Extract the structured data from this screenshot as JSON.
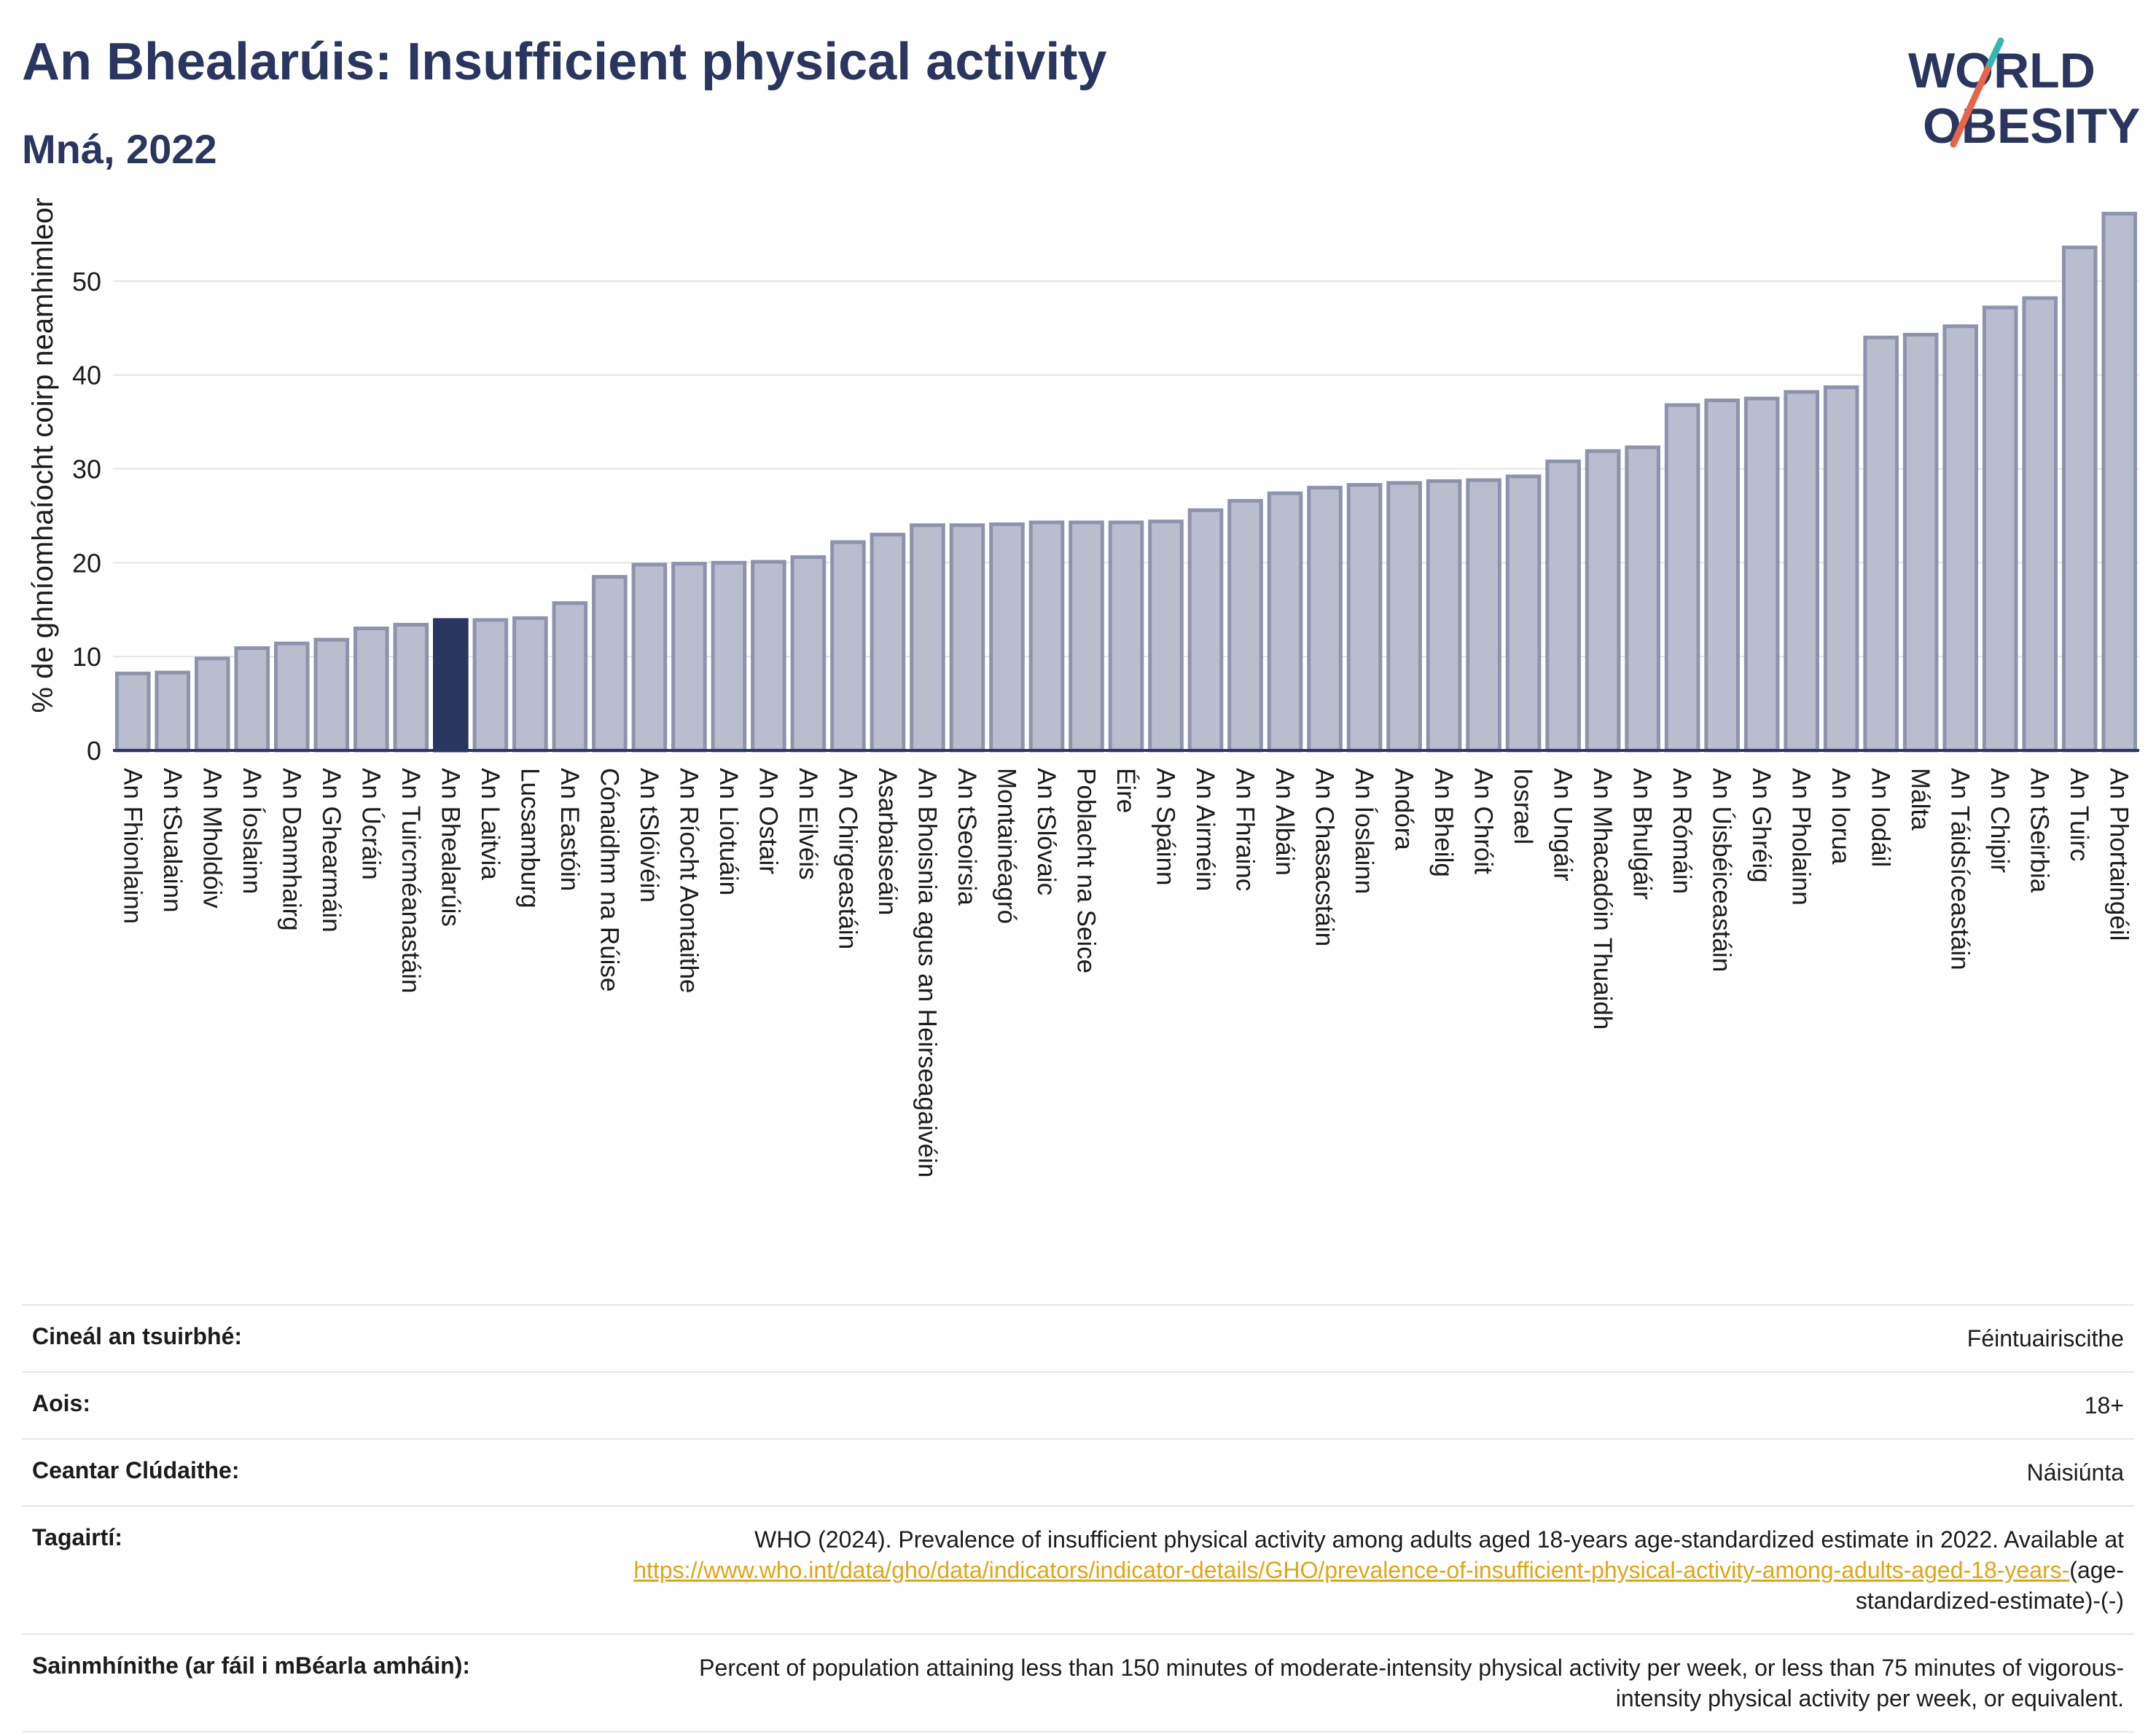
{
  "header": {
    "title": "An Bhealarúis: Insufficient physical activity",
    "subtitle": "Mná, 2022"
  },
  "logo": {
    "line1": "WORLD",
    "line2": "OBESITY",
    "accent": "#e8654a",
    "accent2": "#35b6b4",
    "color": "#2a3560"
  },
  "colors": {
    "bar": "#b9bdcd",
    "bar_stroke": "#8d93ac",
    "highlight": "#2a3560",
    "axis": "#2a3560",
    "grid": "#e4e4e4"
  },
  "chart_data": {
    "type": "bar",
    "ylabel": "% de ghníomhaíocht coirp neamhimleor",
    "ylim": [
      0,
      59
    ],
    "yticks": [
      0,
      10,
      20,
      30,
      40,
      50
    ],
    "grid": true,
    "highlight": "An Bhealarúis",
    "categories": [
      "An Fhionlainn",
      "An tSualainn",
      "An Mholdóiv",
      "An Íoslainn",
      "An Danmhairg",
      "An Ghearmáin",
      "An Úcráin",
      "An Tuircméanastáin",
      "An Bhealarúis",
      "An Laitvia",
      "Lucsamburg",
      "An Eastóin",
      "Cónaidhm na Rúise",
      "An tSlóivéin",
      "An Ríocht Aontaithe",
      "An Liotuáin",
      "An Ostair",
      "An Eilvéis",
      "An Chirgeastáin",
      "Asarbaiseáin",
      "An Bhoisnia agus an Heirseagaivéin",
      "An tSeoirsia",
      "Montainéagró",
      "An tSlóvaic",
      "Poblacht na Seice",
      "Éire",
      "An Spáinn",
      "An Airméin",
      "An Fhrainc",
      "An Albáin",
      "An Chasacstáin",
      "An Íoslainn",
      "Andóra",
      "An Bheilg",
      "An Chróit",
      "Iosrael",
      "An Ungáir",
      "An Mhacadóin Thuaidh",
      "An Bhulgáir",
      "An Rómáin",
      "An Úisbéiceastáin",
      "An Ghréig",
      "An Pholainn",
      "An Iorua",
      "An Iodáil",
      "Málta",
      "An Táidsíceastáin",
      "An Chipir",
      "An tSeirbia",
      "An Tuirc",
      "An Phortaingéil"
    ],
    "values": [
      8.2,
      8.3,
      9.8,
      10.9,
      11.4,
      11.8,
      13.0,
      13.4,
      13.9,
      13.9,
      14.1,
      15.7,
      18.5,
      19.8,
      19.9,
      20.0,
      20.1,
      20.6,
      22.2,
      23.0,
      24.0,
      24.0,
      24.1,
      24.3,
      24.3,
      24.3,
      24.4,
      25.6,
      26.6,
      27.4,
      28.0,
      28.3,
      28.5,
      28.7,
      28.8,
      29.2,
      30.8,
      31.9,
      32.3,
      36.8,
      37.3,
      37.5,
      38.2,
      38.7,
      44.0,
      44.3,
      45.2,
      47.2,
      48.2,
      53.6,
      57.2
    ]
  },
  "meta": {
    "survey_type_label": "Cineál an tsuirbhé:",
    "survey_type_value": "Féintuairiscithe",
    "age_label": "Aois:",
    "age_value": "18+",
    "coverage_label": "Ceantar Clúdaithe:",
    "coverage_value": "Náisiúnta",
    "references_label": "Tagairtí:",
    "references_text": "WHO (2024). Prevalence of insufficient physical activity among adults aged 18-years age-standardized estimate in 2022. Available at",
    "references_link": "https://www.who.int/data/gho/data/indicators/indicator-details/GHO/prevalence-of-insufficient-physical-activity-among-adults-aged-18-years-",
    "references_suffix": "(age-standardized-estimate)-(-)",
    "definitions_label": "Sainmhínithe (ar fáil i mBéarla amháin):",
    "definitions_value": "Percent of population attaining less than 150 minutes of moderate-intensity physical activity per week, or less than 75 minutes of vigorous-intensity physical activity per week, or equivalent."
  }
}
